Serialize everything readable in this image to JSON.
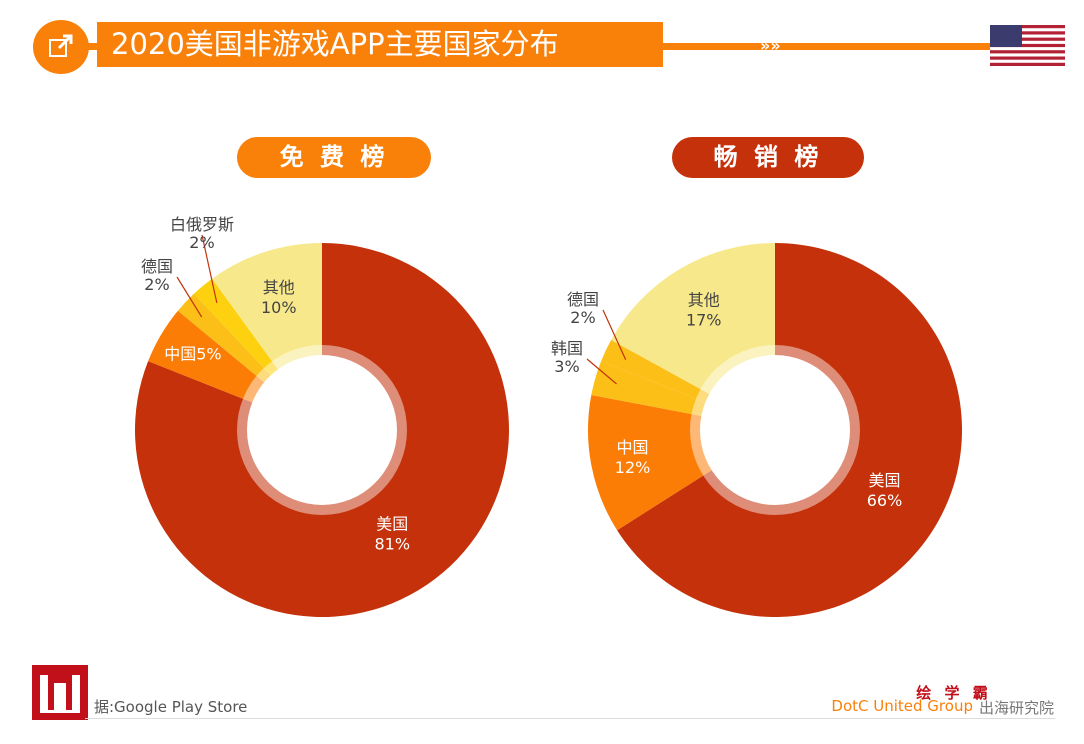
{
  "header": {
    "title": "2020美国非游戏APP主要国家分布",
    "chevrons": "»»",
    "icon": "external-link-icon",
    "flag": "us-flag"
  },
  "footer": {
    "source": "据:Google Play Store",
    "brand_cn": "绘 学 霸",
    "brand_en": "DotC United Group",
    "brand_suffix": "出海研究院"
  },
  "colors": {
    "usa": "#c4310a",
    "china": "#fb7d06",
    "korea": "#fcbf17",
    "germany": "#fcbf17",
    "belarus": "#fdd10f",
    "other": "#f7e98b",
    "accent": "#f98009"
  },
  "chart_data": [
    {
      "type": "pie",
      "variant": "donut",
      "title": "免 费 榜",
      "title_color": "#f98009",
      "slices": [
        {
          "label": "美国",
          "value": 81,
          "text": "81%"
        },
        {
          "label": "中国",
          "value": 5,
          "text": "5%"
        },
        {
          "label": "德国",
          "value": 2,
          "text": "2%"
        },
        {
          "label": "白俄罗斯",
          "value": 2,
          "text": "2%"
        },
        {
          "label": "其他",
          "value": 10,
          "text": "10%"
        }
      ]
    },
    {
      "type": "pie",
      "variant": "donut",
      "title": "畅 销 榜",
      "title_color": "#c4310a",
      "slices": [
        {
          "label": "美国",
          "value": 66,
          "text": "66%"
        },
        {
          "label": "中国",
          "value": 12,
          "text": "12%"
        },
        {
          "label": "韩国",
          "value": 3,
          "text": "3%"
        },
        {
          "label": "德国",
          "value": 2,
          "text": "2%"
        },
        {
          "label": "其他",
          "value": 17,
          "text": "17%"
        }
      ]
    }
  ]
}
